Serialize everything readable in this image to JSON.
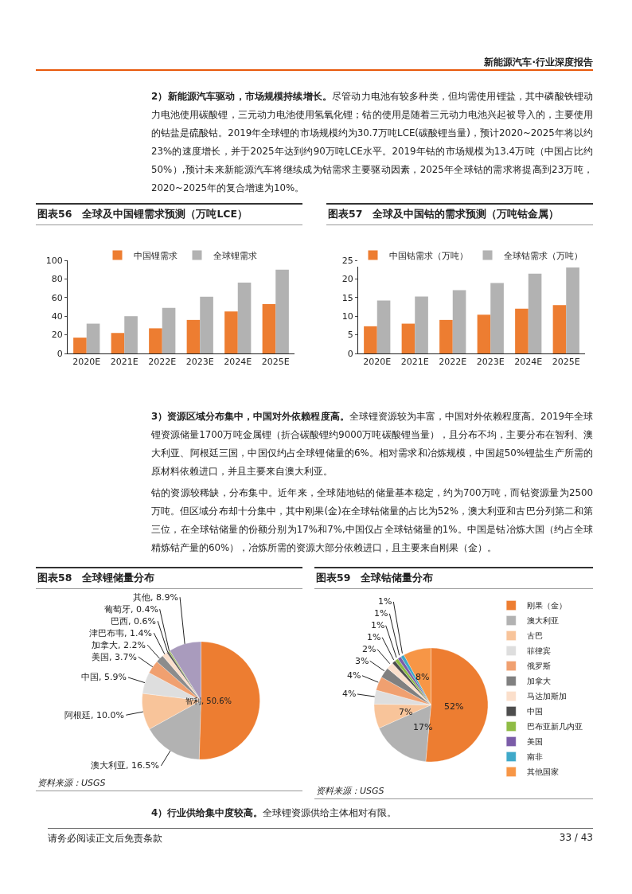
{
  "chart_data": [
    {
      "type": "other",
      "annotations": [
        "新能源汽车·行业深度报告"
      ]
    },
    {
      "type": "other",
      "title": "2）新能源汽车驱动，市场规模持续增长。",
      "annotations": [
        "尽管动力电池有较多种类，但均需使用锂盐，其中磷酸铁锂动力电池使用碳酸锂，三元动力电池使用氢氧化锂；钴的使用是随着三元动力电池兴起被导入的，主要使用的钴盐是硫酸钴。2019年全球锂的市场规模约为30.7万吨LCE(碳酸锂当量)，预计2020~2025年将以约23%的速度增长，并于2025年达到约90万吨LCE水平。2019年钴的市场规模为13.4万吨（中国占比约50%）,预计未来新能源汽车将继续成为钴需求主要驱动因素，2025年全球钴的需求将提高到23万吨，2020~2025年的复合增速为10%。"
      ]
    },
    {
      "type": "bar",
      "title": "图表56　全球及中国锂需求预测（万吨LCE）",
      "categories": [
        "2020E",
        "2021E",
        "2022E",
        "2023E",
        "2024E",
        "2025E"
      ],
      "series": [
        {
          "name": "中国锂需求",
          "color": "#ed7d31",
          "values": [
            17,
            22,
            27,
            36,
            45,
            53
          ]
        },
        {
          "name": "全球锂需求",
          "color": "#b2b2b2",
          "values": [
            32,
            40,
            49,
            61,
            76,
            90
          ]
        }
      ],
      "ylim": [
        0,
        100
      ],
      "yticks": [
        0,
        20,
        40,
        60,
        80,
        100
      ],
      "legend": "top"
    },
    {
      "type": "bar",
      "title": "图表57　全球及中国钴的需求预测（万吨钴金属）",
      "categories": [
        "2020E",
        "2021E",
        "2022E",
        "2023E",
        "2024E",
        "2025E"
      ],
      "series": [
        {
          "name": "中国钴需求（万吨）",
          "color": "#ed7d31",
          "values": [
            7.3,
            8,
            9,
            10.4,
            12,
            13
          ]
        },
        {
          "name": "全球钴需求（万吨）",
          "color": "#b2b2b2",
          "values": [
            14.2,
            15.3,
            17,
            18.9,
            21.4,
            23.1
          ]
        }
      ],
      "ylim": [
        0,
        25
      ],
      "yticks": [
        0,
        5,
        10,
        15,
        20,
        25
      ],
      "legend": "top"
    },
    {
      "type": "other",
      "title": "3）资源区域分布集中，中国对外依赖程度高。",
      "annotations": [
        "全球锂资源较为丰富，中国对外依赖程度高。2019年全球锂资源储量1700万吨金属锂（折合碳酸锂约9000万吨碳酸锂当量），且分布不均，主要分布在智利、澳大利亚、阿根廷三国，中国仅约占全球锂储量的6%。相对需求和冶炼规模，中国超50%锂盐生产所需的原材料依赖进口，并且主要来自澳大利亚。",
        "钴的资源较稀缺，分布集中。近年来，全球陆地钴的储量基本稳定，约为700万吨，而钴资源量为2500万吨。但区域分布却十分集中，其中刚果(金)在全球钴储量的占比为52%，澳大利亚和古巴分列第二和第三位，在全球钴储量的份额分别为17%和7%,中国仅占全球钴储量的1%。中国是钴冶炼大国（约占全球精炼钴产量的60%），冶炼所需的资源大部分依赖进口，且主要来自刚果（金）。"
      ]
    },
    {
      "type": "pie",
      "title": "图表58　全球锂储量分布",
      "categories": [
        "智利",
        "澳大利亚",
        "阿根廷",
        "中国",
        "美国",
        "加拿大",
        "津巴布韦",
        "巴西",
        "葡萄牙",
        "其他"
      ],
      "values": [
        50.6,
        16.5,
        10.0,
        5.9,
        3.7,
        2.2,
        1.4,
        0.6,
        0.4,
        8.9
      ],
      "value_labels": [
        "50.6%",
        "16.5%",
        "10.0%",
        "5.9%",
        "3.7%",
        "2.2%",
        "1.4%",
        "0.6%",
        "0.4%",
        "8.9%"
      ],
      "colors": [
        "#ed7d31",
        "#b2b2b2",
        "#f8c49a",
        "#dedede",
        "#f0a070",
        "#8c8c8c",
        "#fbdfcb",
        "#595959",
        "#9bbb59",
        "#a99bbd"
      ],
      "annotations": [
        "资料来源：USGS"
      ]
    },
    {
      "type": "pie",
      "title": "图表59　全球钴储量分布",
      "categories": [
        "刚果（金）",
        "澳大利亚",
        "古巴",
        "菲律宾",
        "俄罗斯",
        "加拿大",
        "马达加斯加",
        "中国",
        "巴布亚新几内亚",
        "美国",
        "南非",
        "其他国家"
      ],
      "values": [
        52,
        17,
        7,
        4,
        4,
        3,
        2,
        1,
        1,
        1,
        1,
        8
      ],
      "value_labels": [
        "52%",
        "17%",
        "7%",
        "4%",
        "4%",
        "3%",
        "2%",
        "1%",
        "1%",
        "1%",
        "1%",
        "8%"
      ],
      "colors": [
        "#ed7d31",
        "#b2b2b2",
        "#f8c49a",
        "#dedede",
        "#f0a070",
        "#808080",
        "#fbdfcb",
        "#4d4d4d",
        "#8fbc45",
        "#7b5ca8",
        "#3fa9c9",
        "#f79646"
      ],
      "legend": "right",
      "annotations": [
        "资料来源：USGS"
      ]
    },
    {
      "type": "other",
      "title": "4）行业供给集中度较高。",
      "annotations": [
        "全球锂资源供给主体相对有限。"
      ]
    },
    {
      "type": "other",
      "annotations": [
        "请务必阅读正文后免责条款",
        "33 / 43"
      ]
    }
  ]
}
